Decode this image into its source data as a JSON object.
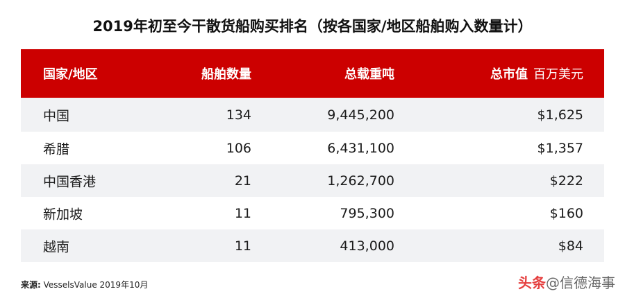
{
  "title": "2019年初至今干散货船购买排名（按各国家/地区船舶购入数量计）",
  "header": {
    "country": "国家/地区",
    "ships": "船舶数量",
    "dwt": "总载重吨",
    "value": "总市值",
    "value_unit": "百万美元"
  },
  "rows": [
    {
      "country": "中国",
      "ships": "134",
      "dwt": "9,445,200",
      "value": "$1,625"
    },
    {
      "country": "希腊",
      "ships": "106",
      "dwt": "6,431,100",
      "value": "$1,357"
    },
    {
      "country": "中国香港",
      "ships": "21",
      "dwt": "1,262,700",
      "value": "$222"
    },
    {
      "country": "新加坡",
      "ships": "11",
      "dwt": "795,300",
      "value": "$160"
    },
    {
      "country": "越南",
      "ships": "11",
      "dwt": "413,000",
      "value": "$84"
    }
  ],
  "source": {
    "label": "来源:",
    "text": " VesselsValue 2019年10月"
  },
  "watermark": {
    "logo": "头条",
    "text": "@信德海事"
  },
  "colors": {
    "header_bg": "#cc0000",
    "stripe": "#f1f2f4"
  }
}
